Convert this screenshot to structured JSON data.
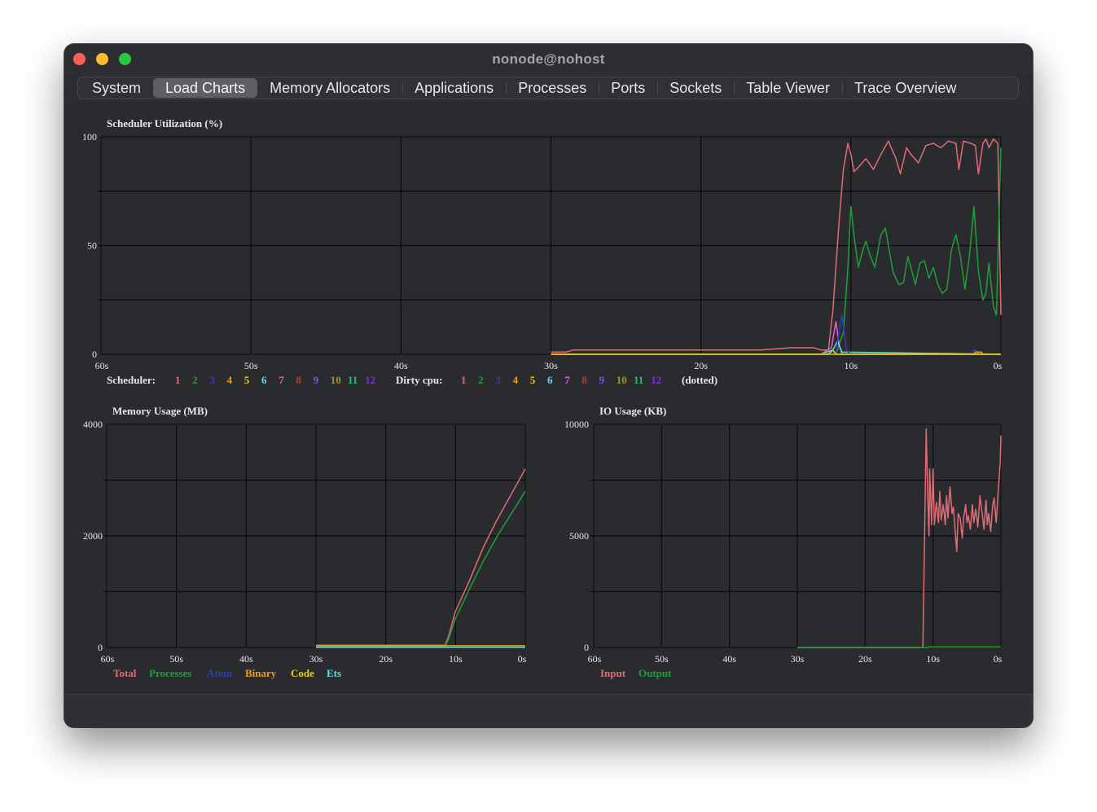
{
  "window": {
    "title": "nonode@nohost"
  },
  "tabs": [
    {
      "label": "System",
      "selected": false
    },
    {
      "label": "Load Charts",
      "selected": true
    },
    {
      "label": "Memory Allocators",
      "selected": false
    },
    {
      "label": "Applications",
      "selected": false
    },
    {
      "label": "Processes",
      "selected": false
    },
    {
      "label": "Ports",
      "selected": false
    },
    {
      "label": "Sockets",
      "selected": false
    },
    {
      "label": "Table Viewer",
      "selected": false
    },
    {
      "label": "Trace Overview",
      "selected": false
    }
  ],
  "colors": {
    "s1": "#e06c75",
    "s2": "#1f9e3a",
    "s3": "#2f3fb0",
    "s4": "#f39c12",
    "s5": "#e8d20a",
    "s6": "#5ee0e0",
    "s7": "#e060e0",
    "s8": "#c0392b",
    "s9": "#6a5af9",
    "s10": "#a09a20",
    "s11": "#20c070",
    "s12": "#8a2be2"
  },
  "chart_data": [
    {
      "type": "line",
      "title": "Scheduler Utilization (%)",
      "ylim": [
        0,
        100
      ],
      "yticks": [
        "100",
        "50",
        "0"
      ],
      "xticks": [
        "60s",
        "50s",
        "40s",
        "30s",
        "20s",
        "10s",
        "0s"
      ],
      "legend_prefix": "Scheduler:",
      "legend_prefix2": "Dirty cpu:",
      "legend_suffix": "(dotted)",
      "scheduler_labels": [
        "1",
        "2",
        "3",
        "4",
        "5",
        "6",
        "7",
        "8",
        "9",
        "10",
        "11",
        "12"
      ],
      "dirty_labels": [
        "1",
        "2",
        "3",
        "4",
        "5",
        "6",
        "7",
        "8",
        "9",
        "10",
        "11",
        "12"
      ],
      "series": [
        {
          "color": "s1",
          "points": [
            [
              30,
              1
            ],
            [
              29,
              1
            ],
            [
              28.5,
              2
            ],
            [
              27,
              2
            ],
            [
              25,
              2
            ],
            [
              22,
              2
            ],
            [
              19,
              2
            ],
            [
              16,
              2
            ],
            [
              14,
              3
            ],
            [
              12.5,
              3
            ],
            [
              12,
              2
            ],
            [
              11.5,
              2
            ],
            [
              11.2,
              20
            ],
            [
              10.8,
              60
            ],
            [
              10.5,
              85
            ],
            [
              10.2,
              97
            ],
            [
              10,
              92
            ],
            [
              9.8,
              84
            ],
            [
              9.5,
              86
            ],
            [
              9,
              90
            ],
            [
              8.5,
              85
            ],
            [
              8,
              92
            ],
            [
              7.5,
              98
            ],
            [
              7,
              90
            ],
            [
              6.7,
              83
            ],
            [
              6.3,
              95
            ],
            [
              6,
              92
            ],
            [
              5.5,
              88
            ],
            [
              5,
              96
            ],
            [
              4.5,
              97
            ],
            [
              4,
              95
            ],
            [
              3.5,
              98
            ],
            [
              3,
              97
            ],
            [
              2.8,
              85
            ],
            [
              2.5,
              98
            ],
            [
              2,
              97
            ],
            [
              1.7,
              96
            ],
            [
              1.5,
              83
            ],
            [
              1.2,
              97
            ],
            [
              1,
              99
            ],
            [
              0.8,
              95
            ],
            [
              0.5,
              99
            ],
            [
              0.2,
              97
            ],
            [
              0,
              18
            ]
          ]
        },
        {
          "color": "s2",
          "points": [
            [
              30,
              0
            ],
            [
              20,
              0
            ],
            [
              12,
              0
            ],
            [
              11,
              0
            ],
            [
              10.5,
              10
            ],
            [
              10.2,
              40
            ],
            [
              10,
              68
            ],
            [
              9.8,
              55
            ],
            [
              9.5,
              40
            ],
            [
              9.2,
              48
            ],
            [
              9,
              52
            ],
            [
              8.7,
              45
            ],
            [
              8.4,
              40
            ],
            [
              8,
              55
            ],
            [
              7.7,
              58
            ],
            [
              7.5,
              50
            ],
            [
              7.2,
              38
            ],
            [
              6.8,
              32
            ],
            [
              6.5,
              33
            ],
            [
              6.2,
              45
            ],
            [
              6,
              40
            ],
            [
              5.7,
              32
            ],
            [
              5.4,
              42
            ],
            [
              5.1,
              43
            ],
            [
              4.8,
              35
            ],
            [
              4.5,
              40
            ],
            [
              4.2,
              32
            ],
            [
              3.9,
              28
            ],
            [
              3.6,
              30
            ],
            [
              3.3,
              48
            ],
            [
              3,
              55
            ],
            [
              2.7,
              45
            ],
            [
              2.4,
              30
            ],
            [
              2.1,
              45
            ],
            [
              1.8,
              68
            ],
            [
              1.5,
              38
            ],
            [
              1.2,
              25
            ],
            [
              1,
              28
            ],
            [
              0.8,
              42
            ],
            [
              0.5,
              22
            ],
            [
              0.3,
              18
            ],
            [
              0,
              95
            ]
          ]
        },
        {
          "color": "s7",
          "points": [
            [
              30,
              0
            ],
            [
              12,
              0
            ],
            [
              11.3,
              3
            ],
            [
              11,
              15
            ],
            [
              10.8,
              5
            ],
            [
              10.6,
              0
            ],
            [
              0,
              0
            ]
          ]
        },
        {
          "color": "s6",
          "points": [
            [
              30,
              0
            ],
            [
              12,
              0
            ],
            [
              11.2,
              2
            ],
            [
              10.9,
              6
            ],
            [
              10.6,
              1
            ],
            [
              0,
              0
            ]
          ]
        },
        {
          "color": "s3",
          "points": [
            [
              30,
              0
            ],
            [
              12,
              0
            ],
            [
              11,
              1
            ],
            [
              10.6,
              18
            ],
            [
              10.3,
              2
            ],
            [
              10,
              0
            ],
            [
              2,
              0
            ],
            [
              1.8,
              2
            ],
            [
              1.5,
              1
            ],
            [
              1.2,
              0
            ],
            [
              0,
              0
            ]
          ]
        },
        {
          "color": "s4",
          "points": [
            [
              30,
              0
            ],
            [
              1.8,
              0
            ],
            [
              1.7,
              1
            ],
            [
              1.3,
              1
            ],
            [
              1.2,
              0
            ],
            [
              0,
              0
            ]
          ]
        },
        {
          "color": "s5",
          "points": [
            [
              30,
              0
            ],
            [
              11.5,
              0
            ],
            [
              11.2,
              2
            ],
            [
              11,
              0
            ],
            [
              0,
              0
            ]
          ]
        }
      ]
    },
    {
      "type": "line",
      "title": "Memory Usage (MB)",
      "ylim": [
        0,
        4000
      ],
      "yticks": [
        "4000",
        "2000",
        "0"
      ],
      "xticks": [
        "60s",
        "50s",
        "40s",
        "30s",
        "20s",
        "10s",
        "0s"
      ],
      "legend": [
        {
          "label": "Total",
          "color": "s1"
        },
        {
          "label": "Processes",
          "color": "s2"
        },
        {
          "label": "Atom",
          "color": "s3"
        },
        {
          "label": "Binary",
          "color": "s4"
        },
        {
          "label": "Code",
          "color": "s5"
        },
        {
          "label": "Ets",
          "color": "s6"
        }
      ],
      "series": [
        {
          "color": "s1",
          "points": [
            [
              30,
              40
            ],
            [
              12,
              40
            ],
            [
              11.5,
              40
            ],
            [
              11,
              200
            ],
            [
              10,
              650
            ],
            [
              8,
              1200
            ],
            [
              6,
              1800
            ],
            [
              4,
              2300
            ],
            [
              2,
              2750
            ],
            [
              0,
              3200
            ]
          ]
        },
        {
          "color": "s2",
          "points": [
            [
              30,
              20
            ],
            [
              12,
              20
            ],
            [
              11.5,
              20
            ],
            [
              11,
              150
            ],
            [
              10,
              520
            ],
            [
              8,
              1050
            ],
            [
              6,
              1550
            ],
            [
              4,
              2000
            ],
            [
              2,
              2400
            ],
            [
              0,
              2800
            ]
          ]
        },
        {
          "color": "s4",
          "points": [
            [
              30,
              30
            ],
            [
              12,
              30
            ],
            [
              11.5,
              30
            ],
            [
              0,
              30
            ]
          ]
        },
        {
          "color": "s6",
          "points": [
            [
              30,
              5
            ],
            [
              0,
              5
            ]
          ]
        }
      ]
    },
    {
      "type": "line",
      "title": "IO Usage (KB)",
      "ylim": [
        0,
        10000
      ],
      "yticks": [
        "10000",
        "5000",
        "0"
      ],
      "xticks": [
        "60s",
        "50s",
        "40s",
        "30s",
        "20s",
        "10s",
        "0s"
      ],
      "legend": [
        {
          "label": "Input",
          "color": "s1"
        },
        {
          "label": "Output",
          "color": "s2"
        }
      ],
      "series": [
        {
          "color": "s1",
          "points": [
            [
              30,
              0
            ],
            [
              20,
              0
            ],
            [
              11.5,
              0
            ],
            [
              11,
              9800
            ],
            [
              10.8,
              7000
            ],
            [
              10.6,
              5000
            ],
            [
              10.5,
              8000
            ],
            [
              10.2,
              5500
            ],
            [
              10,
              8000
            ],
            [
              9.8,
              5500
            ],
            [
              9.5,
              6500
            ],
            [
              9.2,
              5600
            ],
            [
              9,
              7000
            ],
            [
              8.8,
              5700
            ],
            [
              8.5,
              6400
            ],
            [
              8.2,
              5500
            ],
            [
              8,
              6800
            ],
            [
              7.8,
              5800
            ],
            [
              7.5,
              7200
            ],
            [
              7.2,
              6000
            ],
            [
              7,
              6300
            ],
            [
              6.8,
              5500
            ],
            [
              6.5,
              4300
            ],
            [
              6.3,
              6000
            ],
            [
              6,
              5800
            ],
            [
              5.7,
              4900
            ],
            [
              5.5,
              5800
            ],
            [
              5.2,
              6400
            ],
            [
              5,
              5600
            ],
            [
              4.8,
              5900
            ],
            [
              4.5,
              5300
            ],
            [
              4.2,
              6400
            ],
            [
              4,
              5600
            ],
            [
              3.7,
              6200
            ],
            [
              3.4,
              5400
            ],
            [
              3.1,
              6800
            ],
            [
              2.8,
              6100
            ],
            [
              2.5,
              5300
            ],
            [
              2.2,
              6600
            ],
            [
              2,
              5500
            ],
            [
              1.8,
              6000
            ],
            [
              1.5,
              5200
            ],
            [
              1.2,
              6400
            ],
            [
              1,
              6700
            ],
            [
              0.7,
              5600
            ],
            [
              0.4,
              7000
            ],
            [
              0.1,
              8300
            ],
            [
              0,
              9500
            ]
          ]
        },
        {
          "color": "s2",
          "points": [
            [
              30,
              0
            ],
            [
              11,
              0
            ],
            [
              10.5,
              30
            ],
            [
              0,
              30
            ]
          ]
        }
      ]
    }
  ]
}
